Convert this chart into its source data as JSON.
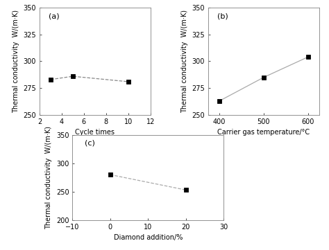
{
  "panel_a": {
    "label": "(a)",
    "x": [
      3,
      5,
      10
    ],
    "y": [
      283,
      286,
      281
    ],
    "xlim": [
      2,
      12
    ],
    "ylim": [
      250,
      350
    ],
    "xticks": [
      2,
      4,
      6,
      8,
      10,
      12
    ],
    "yticks": [
      250,
      275,
      300,
      325,
      350
    ],
    "xlabel": "Cycle times",
    "ylabel": "Thermal conductivity  W/(m·K)",
    "linestyle": "--",
    "color": "#888888",
    "marker": "s",
    "markersize": 4,
    "linewidth": 0.9
  },
  "panel_b": {
    "label": "(b)",
    "x": [
      400,
      500,
      600
    ],
    "y": [
      263,
      285,
      304
    ],
    "xlim": [
      375,
      625
    ],
    "ylim": [
      250,
      350
    ],
    "xticks": [
      400,
      500,
      600
    ],
    "yticks": [
      250,
      275,
      300,
      325,
      350
    ],
    "xlabel": "Carrier gas temperature/°C",
    "ylabel": "Thermal conductivity  W/(m·K)",
    "linestyle": "-",
    "color": "#aaaaaa",
    "marker": "s",
    "markersize": 4,
    "linewidth": 0.9
  },
  "panel_c": {
    "label": "(c)",
    "x": [
      0,
      20
    ],
    "y": [
      280,
      253
    ],
    "xlim": [
      -10,
      30
    ],
    "ylim": [
      200,
      350
    ],
    "xticks": [
      -10,
      0,
      10,
      20,
      30
    ],
    "yticks": [
      200,
      250,
      300,
      350
    ],
    "xlabel": "Diamond addition/%",
    "ylabel": "Thermal conductivity  W/(m·K)",
    "linestyle": "--",
    "color": "#aaaaaa",
    "marker": "s",
    "markersize": 4,
    "linewidth": 0.9
  },
  "background_color": "#ffffff",
  "fig_background": "#ffffff",
  "label_fontsize": 8,
  "tick_fontsize": 7,
  "axis_label_fontsize": 7
}
